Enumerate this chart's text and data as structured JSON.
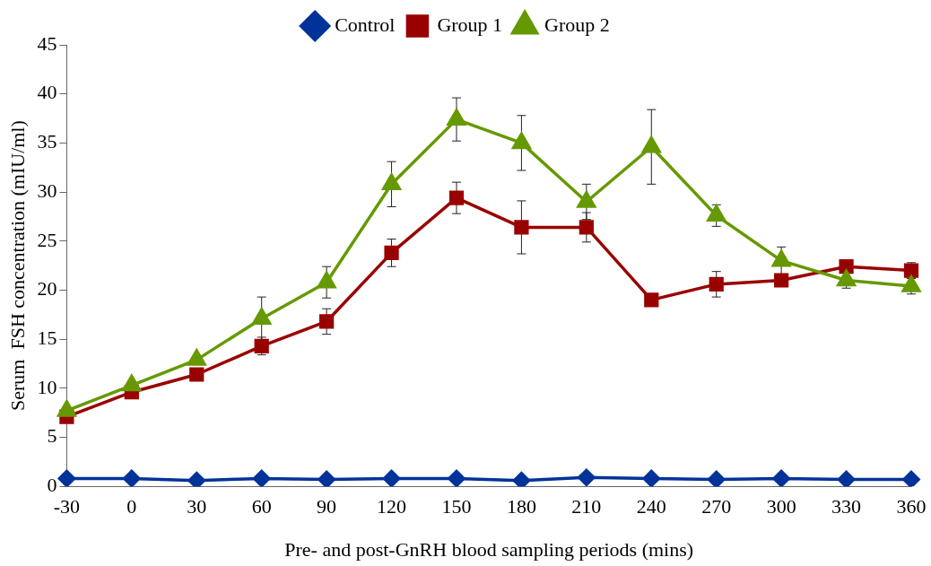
{
  "chart_data": {
    "type": "line",
    "xlabel": "Pre- and post-GnRH blood sampling periods (mins)",
    "ylabel": "Serum  FSH concentration (mIU/ml)",
    "categories": [
      "-30",
      "0",
      "30",
      "60",
      "90",
      "120",
      "150",
      "180",
      "210",
      "240",
      "270",
      "300",
      "330",
      "360"
    ],
    "ylim": [
      0,
      45
    ],
    "yticks": [
      0,
      5,
      10,
      15,
      20,
      25,
      30,
      35,
      40,
      45
    ],
    "grid": false,
    "legend": "top",
    "series": [
      {
        "name": "Control",
        "color": "#003399",
        "marker": "diamond",
        "values": [
          0.8,
          0.8,
          0.6,
          0.8,
          0.7,
          0.8,
          0.8,
          0.6,
          0.9,
          0.8,
          0.7,
          0.8,
          0.7,
          0.7
        ]
      },
      {
        "name": "Group 1",
        "color": "#990000",
        "marker": "square",
        "values": [
          7.1,
          9.6,
          11.4,
          14.3,
          16.8,
          23.8,
          29.4,
          26.4,
          26.4,
          19.0,
          20.6,
          21.0,
          22.4,
          22.0
        ],
        "errors": [
          null,
          null,
          null,
          0.9,
          1.3,
          1.4,
          1.6,
          2.7,
          1.5,
          null,
          1.3,
          null,
          null,
          0.8
        ]
      },
      {
        "name": "Group 2",
        "color": "#669900",
        "marker": "triangle",
        "values": [
          7.7,
          10.3,
          12.9,
          17.1,
          20.8,
          30.8,
          37.4,
          35.0,
          29.0,
          34.6,
          27.6,
          23.0,
          21.0,
          20.4
        ],
        "errors": [
          null,
          null,
          null,
          2.2,
          1.6,
          2.3,
          2.2,
          2.8,
          1.8,
          3.8,
          1.1,
          1.4,
          0.8,
          0.8
        ]
      }
    ]
  }
}
